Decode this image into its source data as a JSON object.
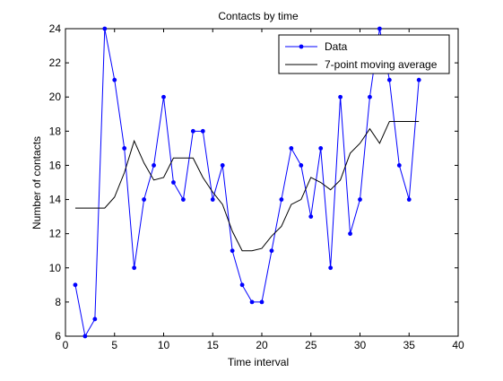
{
  "colors": {
    "figure_background": "#ffffff",
    "axes_background": "#ffffff",
    "data_series": "#0000ff",
    "average_series": "#000000"
  },
  "chart_data": {
    "type": "line",
    "title": "Contacts by time",
    "xlabel": "Time interval",
    "ylabel": "Number of contacts",
    "xlim": [
      0,
      40
    ],
    "ylim": [
      6,
      24
    ],
    "xticks": [
      0,
      5,
      10,
      15,
      20,
      25,
      30,
      35,
      40
    ],
    "yticks": [
      6,
      8,
      10,
      12,
      14,
      16,
      18,
      20,
      22,
      24
    ],
    "grid": false,
    "legend_position": "top-right",
    "series": [
      {
        "name": "Data",
        "style": "line-with-dot-markers",
        "color": "#0000ff",
        "x": [
          1,
          2,
          3,
          4,
          5,
          6,
          7,
          8,
          9,
          10,
          11,
          12,
          13,
          14,
          15,
          16,
          17,
          18,
          19,
          20,
          21,
          22,
          23,
          24,
          25,
          26,
          27,
          28,
          29,
          30,
          31,
          32,
          33,
          34,
          35,
          36
        ],
        "y": [
          9,
          6,
          7,
          24,
          21,
          17,
          10,
          14,
          16,
          20,
          15,
          14,
          18,
          18,
          14,
          16,
          11,
          9,
          8,
          8,
          11,
          14,
          17,
          16,
          13,
          17,
          10,
          20,
          12,
          14,
          20,
          24,
          21,
          16,
          14,
          21
        ]
      },
      {
        "name": "7-point moving average",
        "style": "line",
        "color": "#000000",
        "x": [
          1,
          2,
          3,
          4,
          5,
          6,
          7,
          8,
          9,
          10,
          11,
          12,
          13,
          14,
          15,
          16,
          17,
          18,
          19,
          20,
          21,
          22,
          23,
          24,
          25,
          26,
          27,
          28,
          29,
          30,
          31,
          32,
          33,
          34,
          35,
          36
        ],
        "y": [
          13.5,
          13.5,
          13.5,
          13.5,
          14.14,
          15.57,
          17.43,
          16.14,
          15.14,
          15.29,
          16.43,
          16.43,
          16.43,
          15.29,
          14.43,
          13.71,
          12.14,
          11.0,
          11.0,
          11.14,
          11.86,
          12.43,
          13.71,
          14.0,
          15.29,
          15.0,
          14.57,
          15.14,
          16.71,
          17.29,
          18.14,
          17.29,
          18.57,
          18.57,
          18.57,
          18.57
        ]
      }
    ]
  }
}
